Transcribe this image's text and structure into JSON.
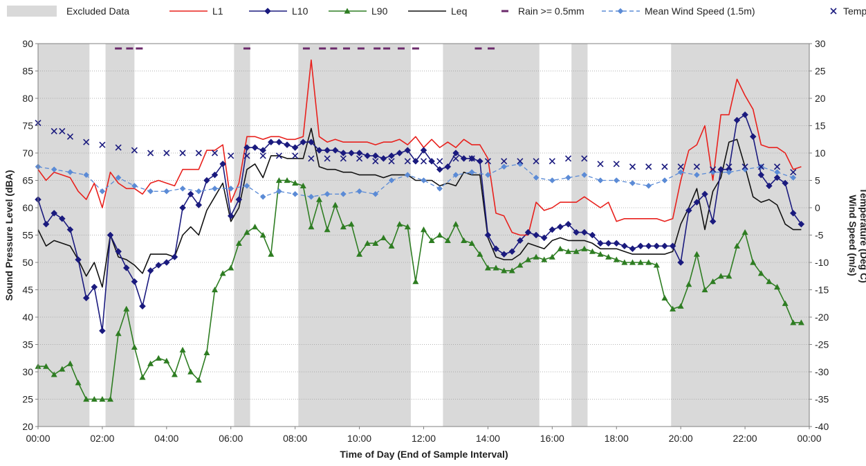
{
  "chart_data": {
    "type": "line",
    "title": "",
    "xlabel": "Time of Day (End of Sample Interval)",
    "ylabel_left": "Sound Pressure Level (dBA)",
    "ylabel_right": [
      "Wind Speed (m/s)",
      "Temperature (Deg C)"
    ],
    "ylim_left": [
      20,
      90
    ],
    "ylim_right": [
      -40,
      30
    ],
    "xlim_hours": [
      0,
      24
    ],
    "x_ticks": [
      "00:00",
      "02:00",
      "04:00",
      "06:00",
      "08:00",
      "10:00",
      "12:00",
      "14:00",
      "16:00",
      "18:00",
      "20:00",
      "22:00",
      "00:00"
    ],
    "y_ticks_left": [
      "20",
      "25",
      "30",
      "35",
      "40",
      "45",
      "50",
      "55",
      "60",
      "65",
      "70",
      "75",
      "80",
      "85",
      "90"
    ],
    "y_ticks_right": [
      "-40",
      "-35",
      "-30",
      "-25",
      "-20",
      "-15",
      "-10",
      "-5",
      "0",
      "5",
      "10",
      "15",
      "20",
      "25",
      "30"
    ],
    "grid": "horizontal",
    "legend_position": "top",
    "legend": [
      {
        "label": "Excluded Data",
        "kind": "band",
        "color": "#d9d9d9"
      },
      {
        "label": "L1",
        "kind": "line",
        "color": "#e8201c"
      },
      {
        "label": "L10",
        "kind": "line-diamond",
        "color": "#1a1a7e"
      },
      {
        "label": "L90",
        "kind": "line-triangle",
        "color": "#2e7d22"
      },
      {
        "label": "Leq",
        "kind": "line",
        "color": "#111111"
      },
      {
        "label": "Rain >= 0.5mm",
        "kind": "dash",
        "color": "#6b2a6b"
      },
      {
        "label": "Mean Wind Speed (1.5m)",
        "kind": "dashed-diamond",
        "color": "#5b8bd6"
      },
      {
        "label": "Temp",
        "kind": "cross",
        "color": "#1a1a7e"
      }
    ],
    "excluded_periods_hours": [
      [
        0.0,
        1.6
      ],
      [
        2.1,
        3.0
      ],
      [
        6.1,
        6.6
      ],
      [
        8.1,
        11.6
      ],
      [
        12.6,
        15.6
      ],
      [
        16.6,
        17.1
      ],
      [
        19.7,
        24.0
      ]
    ],
    "rain_times_hours": [
      2.5,
      2.85,
      3.15,
      6.5,
      8.35,
      8.85,
      9.2,
      9.6,
      10.05,
      10.55,
      10.85,
      11.3,
      11.75,
      13.7,
      14.1
    ],
    "series": [
      {
        "name": "L1",
        "axis": "left",
        "color": "#e8201c",
        "x": [
          0.0,
          0.25,
          0.5,
          0.75,
          1.0,
          1.25,
          1.5,
          1.75,
          2.0,
          2.25,
          2.5,
          2.75,
          3.0,
          3.25,
          3.5,
          3.75,
          4.0,
          4.25,
          4.5,
          4.75,
          5.0,
          5.25,
          5.5,
          5.75,
          6.0,
          6.25,
          6.5,
          6.75,
          7.0,
          7.25,
          7.5,
          7.75,
          8.0,
          8.25,
          8.5,
          8.75,
          9.0,
          9.25,
          9.5,
          9.75,
          10.0,
          10.25,
          10.5,
          10.75,
          11.0,
          11.25,
          11.5,
          11.75,
          12.0,
          12.25,
          12.5,
          12.75,
          13.0,
          13.25,
          13.5,
          13.75,
          14.0,
          14.25,
          14.5,
          14.75,
          15.0,
          15.25,
          15.5,
          15.75,
          16.0,
          16.25,
          16.5,
          16.75,
          17.0,
          17.25,
          17.5,
          17.75,
          18.0,
          18.25,
          18.5,
          18.75,
          19.0,
          19.25,
          19.5,
          19.75,
          20.0,
          20.25,
          20.5,
          20.75,
          21.0,
          21.25,
          21.5,
          21.75,
          22.0,
          22.25,
          22.5,
          22.75,
          23.0,
          23.25,
          23.5,
          23.75
        ],
        "values": [
          67.0,
          65.0,
          66.5,
          66.0,
          65.5,
          63.0,
          61.5,
          64.5,
          60.0,
          66.5,
          64.5,
          63.5,
          63.5,
          62.5,
          64.5,
          65.0,
          64.5,
          64.0,
          67.0,
          67.0,
          67.0,
          70.5,
          70.5,
          71.5,
          61.0,
          64.5,
          73.0,
          73.0,
          72.5,
          73.0,
          73.0,
          72.5,
          72.5,
          73.0,
          87.0,
          73.0,
          72.0,
          72.5,
          72.0,
          72.0,
          72.0,
          72.0,
          71.5,
          72.0,
          72.0,
          72.5,
          71.5,
          73.0,
          71.0,
          72.5,
          71.0,
          72.0,
          71.0,
          72.5,
          71.5,
          71.5,
          69.0,
          59.0,
          58.5,
          55.5,
          55.0,
          55.0,
          61.0,
          59.5,
          60.0,
          61.0,
          61.0,
          61.0,
          62.0,
          61.0,
          60.0,
          61.0,
          57.5,
          58.0,
          58.0,
          58.0,
          58.0,
          58.0,
          57.5,
          58.0,
          65.0,
          70.5,
          71.5,
          75.0,
          65.0,
          77.0,
          77.0,
          83.5,
          80.5,
          78.0,
          71.5,
          71.0,
          71.0,
          70.0,
          67.0,
          67.5
        ]
      },
      {
        "name": "L10",
        "axis": "left",
        "color": "#1a1a7e",
        "x": [
          0.0,
          0.25,
          0.5,
          0.75,
          1.0,
          1.25,
          1.5,
          1.75,
          2.0,
          2.25,
          2.5,
          2.75,
          3.0,
          3.25,
          3.5,
          3.75,
          4.0,
          4.25,
          4.5,
          4.75,
          5.0,
          5.25,
          5.5,
          5.75,
          6.0,
          6.25,
          6.5,
          6.75,
          7.0,
          7.25,
          7.5,
          7.75,
          8.0,
          8.25,
          8.5,
          8.75,
          9.0,
          9.25,
          9.5,
          9.75,
          10.0,
          10.25,
          10.5,
          10.75,
          11.0,
          11.25,
          11.5,
          11.75,
          12.0,
          12.25,
          12.5,
          12.75,
          13.0,
          13.25,
          13.5,
          13.75,
          14.0,
          14.25,
          14.5,
          14.75,
          15.0,
          15.25,
          15.5,
          15.75,
          16.0,
          16.25,
          16.5,
          16.75,
          17.0,
          17.25,
          17.5,
          17.75,
          18.0,
          18.25,
          18.5,
          18.75,
          19.0,
          19.25,
          19.5,
          19.75,
          20.0,
          20.25,
          20.5,
          20.75,
          21.0,
          21.25,
          21.5,
          21.75,
          22.0,
          22.25,
          22.5,
          22.75,
          23.0,
          23.25,
          23.5,
          23.75
        ],
        "values": [
          61.5,
          57.0,
          59.0,
          58.0,
          56.0,
          50.5,
          43.5,
          45.5,
          37.5,
          55.0,
          52.0,
          49.0,
          46.5,
          42.0,
          48.5,
          49.5,
          50.0,
          51.0,
          60.0,
          62.5,
          60.5,
          65.0,
          66.0,
          68.0,
          58.5,
          61.5,
          71.0,
          71.0,
          70.5,
          72.0,
          72.0,
          71.5,
          71.0,
          72.0,
          72.0,
          70.5,
          70.5,
          70.5,
          70.0,
          70.0,
          70.0,
          69.5,
          69.5,
          69.0,
          69.5,
          70.0,
          70.5,
          68.5,
          70.5,
          68.5,
          67.0,
          67.5,
          70.0,
          69.0,
          69.0,
          68.5,
          55.0,
          52.5,
          51.5,
          52.0,
          54.0,
          55.5,
          55.0,
          54.5,
          56.0,
          56.5,
          57.0,
          55.5,
          55.5,
          55.0,
          53.5,
          53.5,
          53.5,
          53.0,
          52.5,
          53.0,
          53.0,
          53.0,
          53.0,
          53.0,
          50.0,
          59.5,
          61.0,
          62.5,
          57.5,
          67.0,
          67.0,
          76.0,
          77.0,
          73.0,
          66.0,
          64.0,
          65.5,
          64.5,
          59.0,
          57.0
        ]
      },
      {
        "name": "L90",
        "axis": "left",
        "color": "#2e7d22",
        "x": [
          0.0,
          0.25,
          0.5,
          0.75,
          1.0,
          1.25,
          1.5,
          1.75,
          2.0,
          2.25,
          2.5,
          2.75,
          3.0,
          3.25,
          3.5,
          3.75,
          4.0,
          4.25,
          4.5,
          4.75,
          5.0,
          5.25,
          5.5,
          5.75,
          6.0,
          6.25,
          6.5,
          6.75,
          7.0,
          7.25,
          7.5,
          7.75,
          8.0,
          8.25,
          8.5,
          8.75,
          9.0,
          9.25,
          9.5,
          9.75,
          10.0,
          10.25,
          10.5,
          10.75,
          11.0,
          11.25,
          11.5,
          11.75,
          12.0,
          12.25,
          12.5,
          12.75,
          13.0,
          13.25,
          13.5,
          13.75,
          14.0,
          14.25,
          14.5,
          14.75,
          15.0,
          15.25,
          15.5,
          15.75,
          16.0,
          16.25,
          16.5,
          16.75,
          17.0,
          17.25,
          17.5,
          17.75,
          18.0,
          18.25,
          18.5,
          18.75,
          19.0,
          19.25,
          19.5,
          19.75,
          20.0,
          20.25,
          20.5,
          20.75,
          21.0,
          21.25,
          21.5,
          21.75,
          22.0,
          22.25,
          22.5,
          22.75,
          23.0,
          23.25,
          23.5,
          23.75
        ],
        "values": [
          31.0,
          31.0,
          29.5,
          30.5,
          31.5,
          28.0,
          25.0,
          25.0,
          25.0,
          25.0,
          37.0,
          41.5,
          34.5,
          29.0,
          31.5,
          32.5,
          32.0,
          29.5,
          34.0,
          30.0,
          28.5,
          33.5,
          45.0,
          48.0,
          49.0,
          53.5,
          55.5,
          56.5,
          55.0,
          51.5,
          65.0,
          65.0,
          64.5,
          64.0,
          56.5,
          61.5,
          56.0,
          60.5,
          56.5,
          57.0,
          51.5,
          53.5,
          53.5,
          54.5,
          53.0,
          57.0,
          56.5,
          46.5,
          56.0,
          54.0,
          55.0,
          54.0,
          57.0,
          54.0,
          53.5,
          51.5,
          49.0,
          49.0,
          48.5,
          48.5,
          49.5,
          50.5,
          51.0,
          50.5,
          51.0,
          52.5,
          52.0,
          52.0,
          52.5,
          52.0,
          51.5,
          51.0,
          50.5,
          50.0,
          50.0,
          50.0,
          50.0,
          49.5,
          43.5,
          41.5,
          42.0,
          46.0,
          51.5,
          45.0,
          46.5,
          47.5,
          47.5,
          53.0,
          55.5,
          50.0,
          48.0,
          46.5,
          45.5,
          42.5,
          39.0,
          39.0
        ]
      },
      {
        "name": "Leq",
        "axis": "left",
        "color": "#111111",
        "x": [
          0.0,
          0.25,
          0.5,
          0.75,
          1.0,
          1.25,
          1.5,
          1.75,
          2.0,
          2.25,
          2.5,
          2.75,
          3.0,
          3.25,
          3.5,
          3.75,
          4.0,
          4.25,
          4.5,
          4.75,
          5.0,
          5.25,
          5.5,
          5.75,
          6.0,
          6.25,
          6.5,
          6.75,
          7.0,
          7.25,
          7.5,
          7.75,
          8.0,
          8.25,
          8.5,
          8.75,
          9.0,
          9.25,
          9.5,
          9.75,
          10.0,
          10.25,
          10.5,
          10.75,
          11.0,
          11.25,
          11.5,
          11.75,
          12.0,
          12.25,
          12.5,
          12.75,
          13.0,
          13.25,
          13.5,
          13.75,
          14.0,
          14.25,
          14.5,
          14.75,
          15.0,
          15.25,
          15.5,
          15.75,
          16.0,
          16.25,
          16.5,
          16.75,
          17.0,
          17.25,
          17.5,
          17.75,
          18.0,
          18.25,
          18.5,
          18.75,
          19.0,
          19.25,
          19.5,
          19.75,
          20.0,
          20.25,
          20.5,
          20.75,
          21.0,
          21.25,
          21.5,
          21.75,
          22.0,
          22.25,
          22.5,
          22.75,
          23.0,
          23.25,
          23.5,
          23.75
        ],
        "values": [
          56.0,
          53.0,
          54.0,
          53.5,
          53.0,
          50.5,
          47.5,
          50.0,
          45.5,
          55.0,
          51.0,
          50.5,
          49.5,
          48.0,
          51.5,
          51.5,
          51.5,
          51.0,
          55.0,
          56.5,
          55.0,
          59.5,
          62.0,
          64.5,
          57.5,
          60.0,
          67.0,
          68.0,
          65.5,
          69.5,
          69.5,
          69.0,
          69.0,
          69.0,
          74.5,
          67.5,
          67.0,
          67.0,
          66.5,
          66.5,
          66.0,
          66.0,
          66.0,
          65.5,
          66.0,
          66.0,
          66.0,
          65.0,
          65.0,
          65.0,
          64.0,
          64.5,
          64.0,
          66.5,
          66.0,
          66.0,
          54.5,
          51.0,
          50.5,
          50.5,
          51.5,
          53.5,
          53.0,
          52.5,
          54.0,
          54.5,
          54.0,
          54.0,
          54.0,
          53.5,
          52.5,
          52.5,
          52.5,
          52.0,
          51.5,
          51.5,
          51.5,
          51.5,
          51.5,
          52.0,
          57.0,
          60.0,
          63.5,
          56.0,
          63.0,
          65.5,
          72.0,
          72.5,
          67.5,
          62.0,
          61.0,
          61.5,
          60.5,
          57.0,
          56.0,
          56.0
        ]
      },
      {
        "name": "Mean Wind Speed (1.5m)",
        "axis": "right",
        "color": "#5b8bd6",
        "x": [
          0.0,
          0.5,
          1.0,
          1.5,
          2.0,
          2.5,
          3.0,
          3.5,
          4.0,
          4.5,
          5.0,
          5.5,
          6.0,
          6.5,
          7.0,
          7.5,
          8.0,
          8.5,
          9.0,
          9.5,
          10.0,
          10.5,
          11.0,
          11.5,
          12.0,
          12.5,
          13.0,
          13.5,
          14.0,
          14.5,
          15.0,
          15.5,
          16.0,
          16.5,
          17.0,
          17.5,
          18.0,
          18.5,
          19.0,
          19.5,
          20.0,
          20.5,
          21.0,
          21.5,
          22.0,
          22.5,
          23.0,
          23.5
        ],
        "values": [
          7.5,
          7.0,
          6.5,
          6.0,
          3.0,
          5.5,
          4.0,
          3.0,
          3.0,
          3.5,
          3.0,
          3.5,
          3.5,
          4.0,
          2.0,
          3.0,
          2.5,
          2.0,
          2.5,
          2.5,
          3.0,
          2.5,
          5.0,
          6.0,
          5.0,
          3.5,
          6.0,
          6.5,
          6.0,
          7.5,
          8.0,
          5.5,
          5.0,
          5.5,
          6.0,
          5.0,
          5.0,
          4.5,
          4.0,
          5.0,
          6.5,
          6.0,
          6.5,
          6.5,
          7.0,
          7.5,
          6.5,
          5.5
        ]
      },
      {
        "name": "Temp",
        "axis": "right",
        "color": "#1a1a7e",
        "x": [
          0.0,
          0.5,
          0.75,
          1.0,
          1.5,
          2.0,
          2.5,
          3.0,
          3.5,
          4.0,
          4.5,
          5.0,
          5.5,
          6.0,
          6.5,
          7.0,
          7.5,
          8.0,
          8.5,
          9.0,
          9.5,
          10.0,
          10.5,
          11.0,
          11.5,
          12.0,
          12.5,
          13.0,
          13.5,
          14.0,
          14.5,
          15.0,
          15.5,
          16.0,
          16.5,
          17.0,
          17.5,
          18.0,
          18.5,
          19.0,
          19.5,
          20.0,
          20.5,
          21.0,
          21.5,
          22.0,
          22.5,
          23.0,
          23.5
        ],
        "values": [
          15.5,
          14.0,
          14.0,
          13.0,
          12.0,
          11.5,
          11.0,
          10.5,
          10.0,
          10.0,
          10.0,
          10.0,
          10.0,
          9.5,
          9.5,
          9.5,
          9.5,
          9.5,
          9.0,
          9.0,
          9.0,
          9.0,
          8.5,
          8.5,
          8.5,
          8.5,
          8.5,
          9.0,
          9.0,
          8.5,
          8.5,
          8.5,
          8.5,
          8.5,
          9.0,
          9.0,
          8.0,
          8.0,
          7.5,
          7.5,
          7.5,
          7.5,
          7.5,
          7.0,
          7.5,
          7.5,
          7.5,
          7.5,
          6.5
        ]
      }
    ]
  }
}
